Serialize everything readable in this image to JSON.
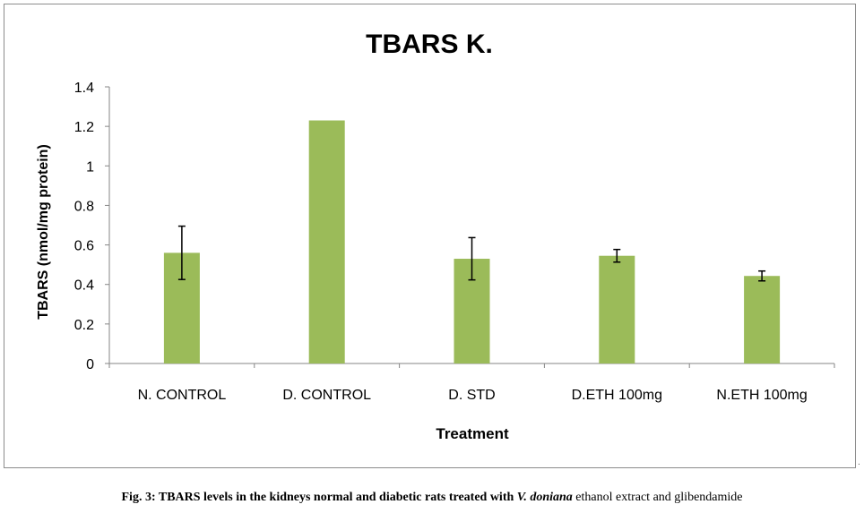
{
  "chart_data": {
    "type": "bar",
    "title": "TBARS K.",
    "xlabel": "Treatment",
    "ylabel": "TBARS (nmol/mg protein)",
    "ylim": [
      0,
      1.4
    ],
    "yticks": [
      "0",
      "0.2",
      "0.4",
      "0.6",
      "0.8",
      "1",
      "1.2",
      "1.4"
    ],
    "ytick_values": [
      0,
      0.2,
      0.4,
      0.6,
      0.8,
      1.0,
      1.2,
      1.4
    ],
    "categories": [
      "N. CONTROL",
      "D. CONTROL",
      "D. STD",
      "D.ETH 100mg",
      "N.ETH 100mg"
    ],
    "values": [
      0.56,
      1.23,
      0.53,
      0.545,
      0.443
    ],
    "errors": [
      0.135,
      null,
      0.107,
      0.032,
      0.025
    ],
    "grid": false,
    "legend": "none",
    "colors": {
      "bar": "#9bbb59",
      "axis": "#868686",
      "error_bar": "#000000",
      "text": "#000000"
    }
  },
  "caption": {
    "prefix": "Fig. 3: TBARS levels in the kidneys normal and diabetic rats treated with ",
    "species": "V. doniana",
    "suffix": " ethanol extract and glibendamide"
  },
  "trailing_mark": "."
}
